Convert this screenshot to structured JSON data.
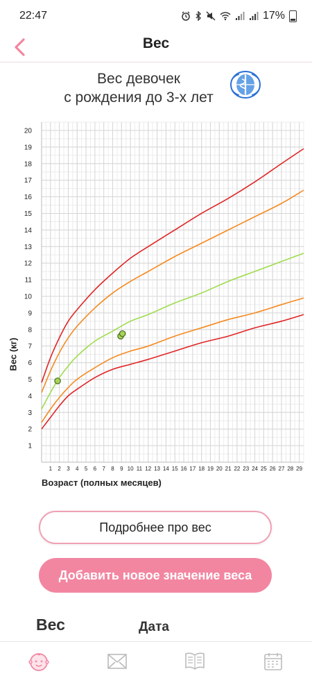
{
  "status_bar": {
    "time": "22:47",
    "battery_percent": "17%"
  },
  "header": {
    "title": "Вес",
    "back_icon": "chevron-left-icon"
  },
  "chart_title": {
    "line1": "Вес девочек",
    "line2": "с рождения до 3-х лет"
  },
  "colors": {
    "accent": "#f286a1",
    "red": "#e02424",
    "orange": "#f5891e",
    "green": "#9edc4c",
    "point_fill": "#a6d35a"
  },
  "chart_data": {
    "type": "line",
    "xlabel": "Возраст (полных месяцев)",
    "ylabel": "Вес (кг)",
    "xlim": [
      0,
      29.5
    ],
    "ylim": [
      0,
      20.5
    ],
    "x_ticks": [
      1,
      2,
      3,
      4,
      5,
      6,
      7,
      8,
      9,
      10,
      11,
      12,
      13,
      14,
      15,
      16,
      17,
      18,
      19,
      20,
      21,
      22,
      23,
      24,
      25,
      26,
      27,
      28,
      29
    ],
    "y_ticks": [
      1,
      2,
      3,
      4,
      5,
      6,
      7,
      8,
      9,
      10,
      11,
      12,
      13,
      14,
      15,
      16,
      17,
      18,
      19,
      20
    ],
    "grid": true,
    "series": [
      {
        "color": "#e02424",
        "x": [
          0,
          1,
          2,
          3,
          4,
          6,
          8,
          10,
          12,
          15,
          18,
          21,
          24,
          27,
          29.5
        ],
        "values": [
          4.8,
          6.3,
          7.5,
          8.5,
          9.2,
          10.4,
          11.4,
          12.3,
          13.0,
          14.0,
          15.0,
          15.9,
          16.9,
          18.0,
          18.9
        ]
      },
      {
        "color": "#f5891e",
        "x": [
          0,
          1,
          2,
          3,
          4,
          6,
          8,
          10,
          12,
          15,
          18,
          21,
          24,
          27,
          29.5
        ],
        "values": [
          4.2,
          5.5,
          6.6,
          7.5,
          8.2,
          9.3,
          10.2,
          10.9,
          11.5,
          12.4,
          13.2,
          14.0,
          14.8,
          15.6,
          16.4
        ]
      },
      {
        "color": "#9edc4c",
        "x": [
          0,
          1,
          2,
          3,
          4,
          6,
          8,
          10,
          12,
          15,
          18,
          21,
          24,
          27,
          29.5
        ],
        "values": [
          3.2,
          4.2,
          5.1,
          5.8,
          6.4,
          7.3,
          7.9,
          8.5,
          8.9,
          9.6,
          10.2,
          10.9,
          11.5,
          12.1,
          12.6
        ]
      },
      {
        "color": "#f5891e",
        "x": [
          0,
          1,
          2,
          3,
          4,
          6,
          8,
          10,
          12,
          15,
          18,
          21,
          24,
          27,
          29.5
        ],
        "values": [
          2.4,
          3.2,
          3.9,
          4.5,
          5.0,
          5.7,
          6.3,
          6.7,
          7.0,
          7.6,
          8.1,
          8.6,
          9.0,
          9.5,
          9.9
        ]
      },
      {
        "color": "#e02424",
        "x": [
          0,
          1,
          2,
          3,
          4,
          6,
          8,
          10,
          12,
          15,
          18,
          21,
          24,
          27,
          29.5
        ],
        "values": [
          2.0,
          2.7,
          3.4,
          4.0,
          4.4,
          5.1,
          5.6,
          5.9,
          6.2,
          6.7,
          7.2,
          7.6,
          8.1,
          8.5,
          8.9
        ]
      }
    ],
    "points": [
      {
        "x": 1.8,
        "y": 4.9
      },
      {
        "x": 8.9,
        "y": 7.6
      },
      {
        "x": 9.1,
        "y": 7.75
      }
    ]
  },
  "buttons": {
    "more": "Подробнее про вес",
    "add": "Добавить новое значение веса"
  },
  "table": {
    "col_weight": "Вес",
    "col_date": "Дата"
  },
  "bottom_nav": [
    {
      "icon": "baby-face-icon",
      "active": true
    },
    {
      "icon": "envelope-icon",
      "active": false
    },
    {
      "icon": "book-icon",
      "active": false
    },
    {
      "icon": "calendar-icon",
      "active": false
    }
  ]
}
